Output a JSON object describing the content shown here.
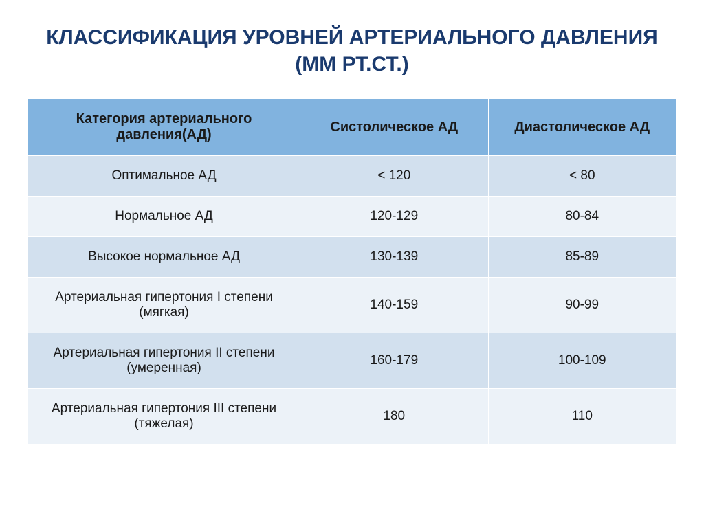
{
  "title": "КЛАССИФИКАЦИЯ УРОВНЕЙ АРТЕРИАЛЬНОГО ДАВЛЕНИЯ (ММ РТ.СТ.)",
  "table": {
    "headers": {
      "category": "Категория артериального давления(АД)",
      "systolic": "Систолическое АД",
      "diastolic": "Диастолическое АД"
    },
    "rows": [
      {
        "category": "Оптимальное АД",
        "systolic": "< 120",
        "diastolic": "< 80"
      },
      {
        "category": "Нормальное АД",
        "systolic": "120-129",
        "diastolic": "80-84"
      },
      {
        "category": "Высокое нормальное АД",
        "systolic": "130-139",
        "diastolic": "85-89"
      },
      {
        "category": "Артериальная гипертония I степени (мягкая)",
        "systolic": "140-159",
        "diastolic": "90-99"
      },
      {
        "category": "Артериальная гипертония II степени (умеренная)",
        "systolic": "160-179",
        "diastolic": "100-109"
      },
      {
        "category": "Артериальная гипертония III степени (тяжелая)",
        "systolic": "180",
        "diastolic": "110"
      }
    ],
    "styling": {
      "header_bg": "#81b3df",
      "row_odd_bg": "#d2e0ee",
      "row_even_bg": "#ecf2f8",
      "border_color": "#ffffff",
      "text_color": "#1a1a1a",
      "title_color": "#1a3a6e",
      "title_fontsize": 30,
      "header_fontsize": 20,
      "cell_fontsize": 19,
      "col_widths_pct": [
        42,
        29,
        29
      ]
    }
  }
}
